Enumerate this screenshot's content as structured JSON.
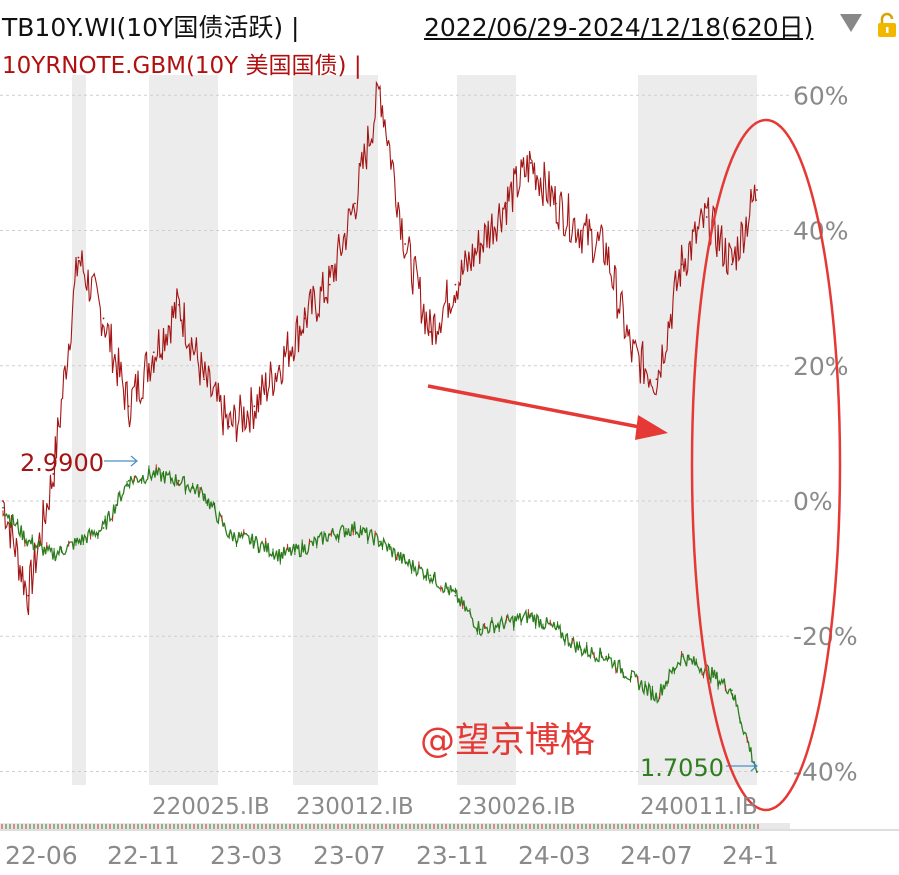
{
  "header": {
    "series1_title": "TB10Y.WI(10Y国债活跃)",
    "series2_title": "10YRNOTE.GBM(10Y 美国国债)",
    "date_range": "2022/06/29-2024/12/18(620日)"
  },
  "watermark": "@望京博格",
  "colors": {
    "series1": "#2e7d1e",
    "series1_down": "#1f6e10",
    "series1_up": "#cc2020",
    "series2": "#a31515",
    "annotation_red": "#e53935",
    "label_blue": "#4a8fc4",
    "grid": "#cfcfcf",
    "band": "#ececec",
    "axis_text": "#8a8a8a"
  },
  "chart_data": {
    "type": "line",
    "title": "",
    "xlabel": "",
    "ylabel": "",
    "grid": true,
    "x_tick_labels": [
      "22-06",
      "22-11",
      "23-03",
      "23-07",
      "23-11",
      "24-03",
      "24-07",
      "24-1"
    ],
    "y_axis_right": {
      "ticks": [
        60,
        40,
        20,
        0,
        -20,
        -40
      ],
      "tick_labels": [
        "60%",
        "40%",
        "20%",
        "0%",
        "-20%",
        "-40%"
      ],
      "ylim": [
        -42,
        63
      ]
    },
    "contract_labels": [
      "220025.IB",
      "230012.IB",
      "230026.IB",
      "240011.IB"
    ],
    "x": [
      "2022-06",
      "2022-07",
      "2022-08",
      "2022-09",
      "2022-10",
      "2022-11",
      "2022-12",
      "2023-01",
      "2023-02",
      "2023-03",
      "2023-04",
      "2023-05",
      "2023-06",
      "2023-07",
      "2023-08",
      "2023-09",
      "2023-10",
      "2023-11",
      "2023-12",
      "2024-01",
      "2024-02",
      "2024-03",
      "2024-04",
      "2024-05",
      "2024-06",
      "2024-07",
      "2024-08",
      "2024-09",
      "2024-10",
      "2024-11",
      "2024-12"
    ],
    "series": [
      {
        "name": "TB10Y.WI(10Y国债活跃)",
        "values": [
          -1,
          -6,
          -8,
          -6,
          -4,
          3,
          4,
          3,
          1,
          -5,
          -6,
          -8,
          -7,
          -5,
          -4,
          -6,
          -9,
          -11,
          -14,
          -19,
          -18,
          -17,
          -19,
          -22,
          -23,
          -26,
          -29,
          -23,
          -25,
          -28,
          -40
        ],
        "start_label": "",
        "end_label": "1.7050"
      },
      {
        "name": "10YRNOTE.GBM(10Y 美国国债)",
        "values": [
          0,
          -14,
          4,
          36,
          27,
          14,
          22,
          29,
          18,
          11,
          14,
          20,
          27,
          32,
          44,
          61,
          38,
          25,
          32,
          38,
          44,
          50,
          44,
          40,
          37,
          22,
          18,
          35,
          42,
          35,
          46
        ],
        "start_label": "2.9900",
        "end_label": ""
      }
    ],
    "annotations": [
      {
        "type": "arrow",
        "color": "#e53935"
      },
      {
        "type": "ellipse",
        "color": "#e53935"
      }
    ]
  }
}
